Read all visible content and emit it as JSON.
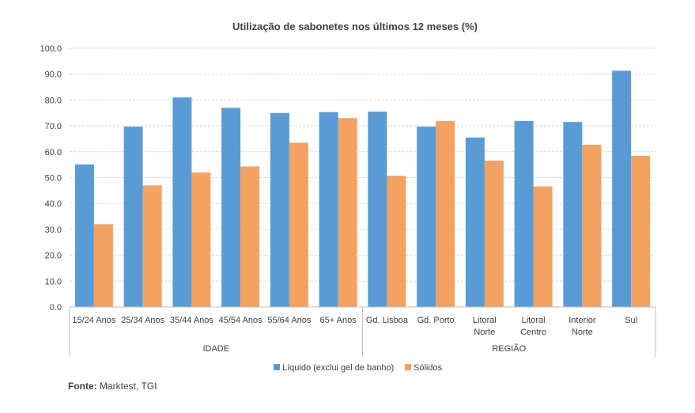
{
  "chart_data": {
    "type": "bar",
    "title": "Utilização de sabonetes nos últimos 12 meses (%)",
    "categories": [
      [
        "15/24 Anos"
      ],
      [
        "25/34 Anos"
      ],
      [
        "35/44 Anos"
      ],
      [
        "45/54 Anos"
      ],
      [
        "55/64 Anos"
      ],
      [
        "65+ Anos"
      ],
      [
        "Gd. Lisboa"
      ],
      [
        "Gd. Porto"
      ],
      [
        "Litoral",
        "Norte"
      ],
      [
        "Litoral",
        "Centro"
      ],
      [
        "Interior",
        "Norte"
      ],
      [
        "Sul"
      ]
    ],
    "groups": [
      {
        "label": "IDADE",
        "start": 0,
        "end": 5
      },
      {
        "label": "REGIÃO",
        "start": 6,
        "end": 11
      }
    ],
    "series": [
      {
        "name": "Líquido (exclui gel de banho)",
        "color": "#5B9BD5",
        "values": [
          55.1,
          69.7,
          81.0,
          77.0,
          75.0,
          75.3,
          75.5,
          69.7,
          65.5,
          71.9,
          71.5,
          91.3
        ]
      },
      {
        "name": "Sólidos",
        "color": "#F4A261",
        "values": [
          32.0,
          47.0,
          52.0,
          54.3,
          63.5,
          73.0,
          50.7,
          71.9,
          56.6,
          46.6,
          62.7,
          58.4
        ]
      }
    ],
    "ylim": [
      0,
      100
    ],
    "yticks": [
      "0.0",
      "10.0",
      "20.0",
      "30.0",
      "40.0",
      "50.0",
      "60.0",
      "70.0",
      "80.0",
      "90.0",
      "100.0"
    ],
    "grid": true,
    "legend": "bottom"
  },
  "source": {
    "label": "Fonte:",
    "text": " Marktest, TGI"
  }
}
